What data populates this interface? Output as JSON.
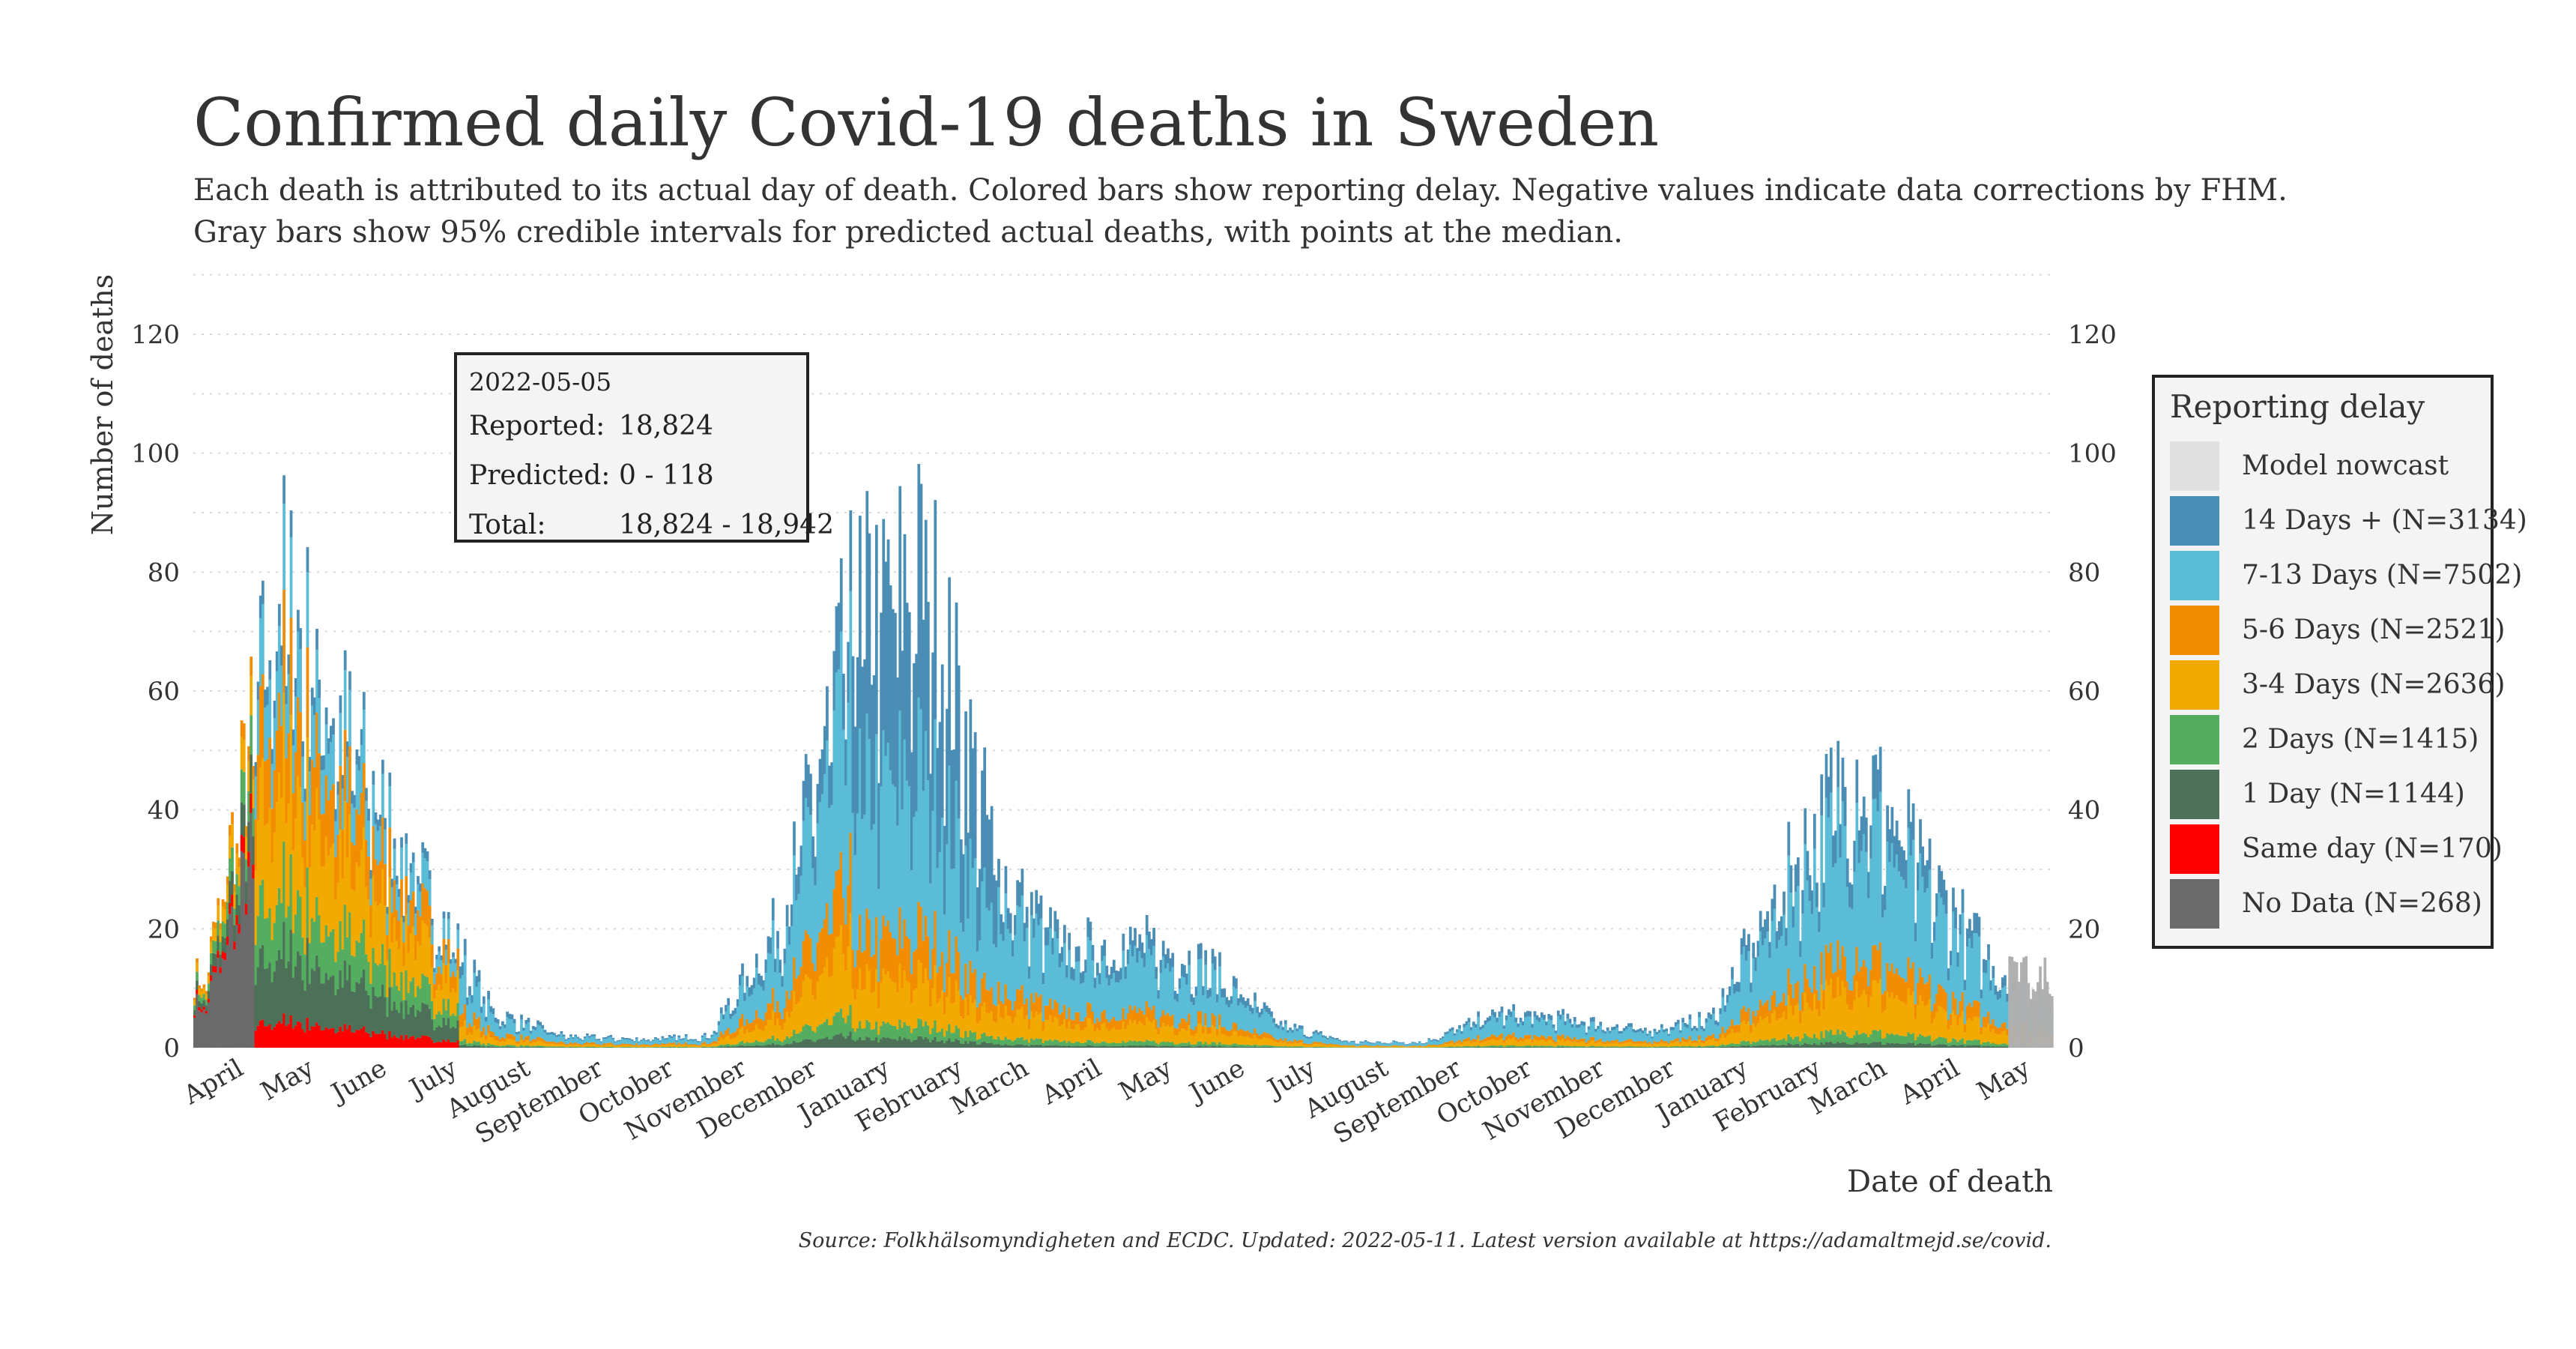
{
  "header": {
    "title": "Confirmed daily Covid-19 deaths in Sweden",
    "subtitle_line1": "Each death is attributed to its actual day of death. Colored bars show reporting delay. Negative values indicate data corrections by FHM.",
    "subtitle_line2": "Gray bars show 95% credible intervals for predicted actual deaths, with points at the median."
  },
  "tooltip": {
    "date": "2022-05-05",
    "reported_label": "Reported:",
    "reported_value": "18,824",
    "predicted_label": "Predicted:",
    "predicted_value": "0 - 118",
    "total_label": "Total:",
    "total_value": "18,824 - 18,942"
  },
  "legend": {
    "title": "Reporting delay",
    "items": [
      {
        "label": "Model nowcast",
        "color": "#e0e0e0"
      },
      {
        "label": "14 Days + (N=3134)",
        "color": "#4a8db5"
      },
      {
        "label": "7-13 Days (N=7502)",
        "color": "#5bbcd8"
      },
      {
        "label": "5-6 Days (N=2521)",
        "color": "#f28c00"
      },
      {
        "label": "3-4 Days (N=2636)",
        "color": "#f2a900"
      },
      {
        "label": "2 Days (N=1415)",
        "color": "#55ad60"
      },
      {
        "label": "1 Day (N=1144)",
        "color": "#4d7058"
      },
      {
        "label": "Same day (N=170)",
        "color": "#ff0000"
      },
      {
        "label": "No Data (N=268)",
        "color": "#6b6b6b"
      }
    ]
  },
  "source": "Source: Folkhälsomyndigheten and ECDC. Updated: 2022-05-11. Latest version available at https://adamaltmejd.se/covid.",
  "chart_data": {
    "type": "bar",
    "stacked": true,
    "ylabel": "Number of deaths",
    "xlabel": "Date of death",
    "ylim": [
      0,
      120
    ],
    "y_ticks": [
      0,
      20,
      40,
      60,
      80,
      100,
      120
    ],
    "x_month_labels": [
      "April",
      "May",
      "June",
      "July",
      "August",
      "September",
      "October",
      "November",
      "December",
      "January",
      "February",
      "March",
      "April",
      "May",
      "June",
      "July",
      "August",
      "September",
      "October",
      "November",
      "December",
      "January",
      "February",
      "March",
      "April",
      "May"
    ],
    "series_order": [
      "No Data",
      "Same day",
      "1 Day",
      "2 Days",
      "3-4 Days",
      "5-6 Days",
      "7-13 Days",
      "14 Days +"
    ],
    "colors": {
      "No Data": "#6b6b6b",
      "Same day": "#ff0000",
      "1 Day": "#4d7058",
      "2 Days": "#55ad60",
      "3-4 Days": "#f2a900",
      "5-6 Days": "#f28c00",
      "7-13 Days": "#5bbcd8",
      "14 Days +": "#4a8db5",
      "Model nowcast": "#b0b0b0"
    },
    "monthly_avg_daily_totals": [
      {
        "month": "2020-03",
        "total": 12
      },
      {
        "month": "2020-04",
        "total": 78
      },
      {
        "month": "2020-05",
        "total": 52
      },
      {
        "month": "2020-06",
        "total": 28
      },
      {
        "month": "2020-07",
        "total": 6
      },
      {
        "month": "2020-08",
        "total": 2
      },
      {
        "month": "2020-09",
        "total": 1.5
      },
      {
        "month": "2020-10",
        "total": 2
      },
      {
        "month": "2020-11",
        "total": 22
      },
      {
        "month": "2020-12",
        "total": 72
      },
      {
        "month": "2021-01",
        "total": 80
      },
      {
        "month": "2021-02",
        "total": 30
      },
      {
        "month": "2021-03",
        "total": 17
      },
      {
        "month": "2021-04",
        "total": 18
      },
      {
        "month": "2021-05",
        "total": 14
      },
      {
        "month": "2021-06",
        "total": 4
      },
      {
        "month": "2021-07",
        "total": 1
      },
      {
        "month": "2021-08",
        "total": 1
      },
      {
        "month": "2021-09",
        "total": 6
      },
      {
        "month": "2021-10",
        "total": 5
      },
      {
        "month": "2021-11",
        "total": 3
      },
      {
        "month": "2021-12",
        "total": 5
      },
      {
        "month": "2022-01",
        "total": 28
      },
      {
        "month": "2022-02",
        "total": 48
      },
      {
        "month": "2022-03",
        "total": 30
      },
      {
        "month": "2022-04",
        "total": 14
      },
      {
        "month": "2022-05",
        "total": 7
      }
    ]
  }
}
